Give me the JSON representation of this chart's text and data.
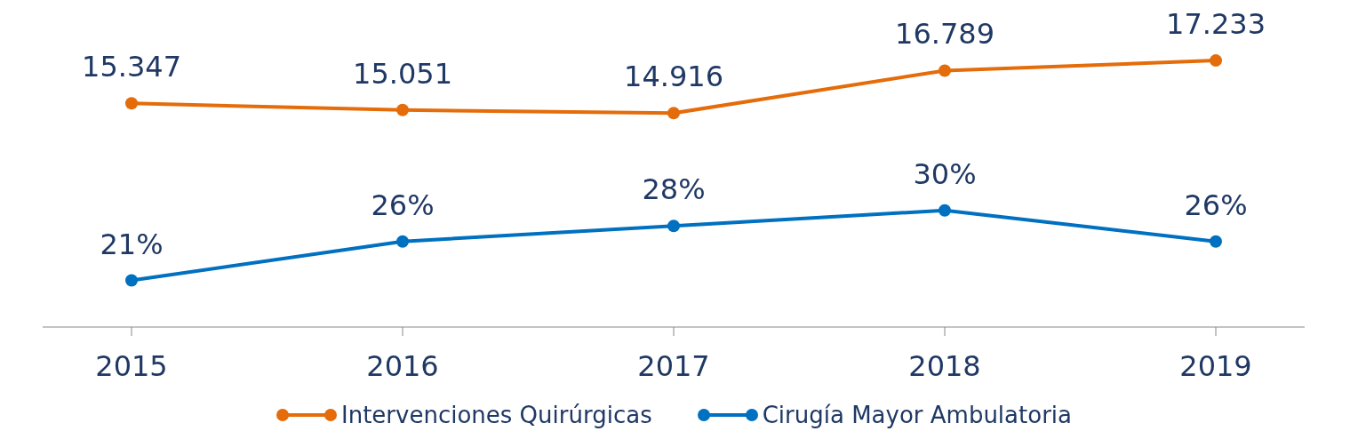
{
  "chart_data": [
    {
      "type": "line",
      "categories": [
        "2015",
        "2016",
        "2017",
        "2018",
        "2019"
      ],
      "series": [
        {
          "name": "Intervenciones Quirúrgicas",
          "color": "#e46c0a",
          "values": [
            15347,
            15051,
            14916,
            16789,
            17233
          ],
          "value_labels": [
            "15.347",
            "15.051",
            "14.916",
            "16.789",
            "17.233"
          ]
        }
      ],
      "tick_labels": false,
      "marker": "circle",
      "legend": "bottom"
    },
    {
      "type": "line",
      "categories": [
        "2015",
        "2016",
        "2017",
        "2018",
        "2019"
      ],
      "series": [
        {
          "name": "Cirugía Mayor Ambulatoria",
          "color": "#0070c0",
          "values": [
            21,
            26,
            28,
            30,
            26
          ],
          "value_labels": [
            "21%",
            "26%",
            "28%",
            "30%",
            "26%"
          ]
        }
      ],
      "tick_labels": "x",
      "marker": "circle",
      "legend": "bottom"
    }
  ]
}
